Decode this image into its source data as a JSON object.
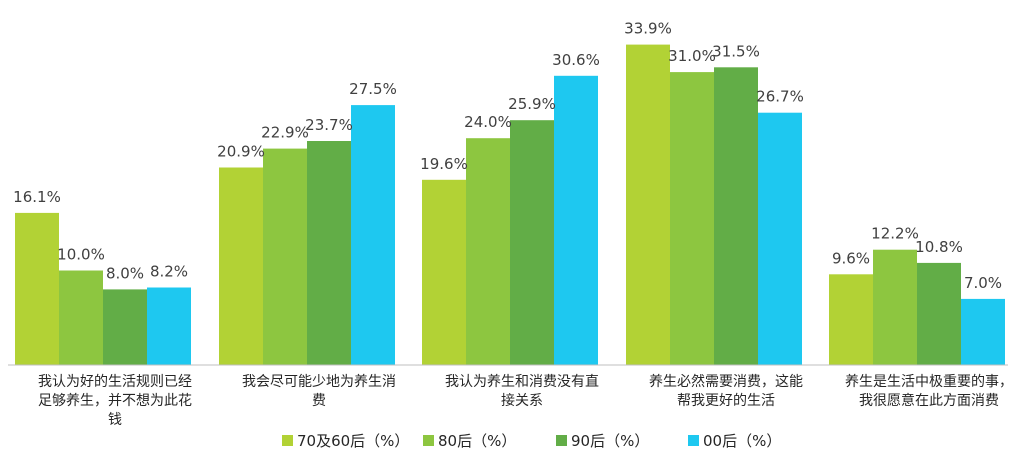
{
  "chart_data": {
    "type": "bar",
    "title": "",
    "xlabel": "",
    "ylabel": "",
    "ylim": [
      0,
      35
    ],
    "grid": false,
    "legend_position": "bottom",
    "categories": [
      [
        "我认为好的生活规则已经",
        "足够养生，并不想为此花",
        "钱"
      ],
      [
        "我会尽可能少地为养生消",
        "费"
      ],
      [
        "我认为养生和消费没有直",
        "接关系"
      ],
      [
        "养生必然需要消费，这能",
        "帮我更好的生活"
      ],
      [
        "养生是生活中极重要的事，",
        "我很愿意在此方面消费"
      ]
    ],
    "series": [
      {
        "name": "70及60后（%）",
        "color": "#b2d235",
        "values": [
          16.1,
          20.9,
          19.6,
          33.9,
          9.6
        ],
        "labels": [
          "16.1%",
          "20.9%",
          "19.6%",
          "33.9%",
          "9.6%"
        ]
      },
      {
        "name": "80后（%）",
        "color": "#8dc640",
        "values": [
          10.0,
          22.9,
          24.0,
          31.0,
          12.2
        ],
        "labels": [
          "10.0%",
          "22.9%",
          "24.0%",
          "31.0%",
          "12.2%"
        ]
      },
      {
        "name": "90后（%）",
        "color": "#62ad47",
        "values": [
          8.0,
          23.7,
          25.9,
          31.5,
          10.8
        ],
        "labels": [
          "8.0%",
          "23.7%",
          "25.9%",
          "31.5%",
          "10.8%"
        ]
      },
      {
        "name": "00后（%）",
        "color": "#1ec8f0",
        "values": [
          8.2,
          27.5,
          30.6,
          26.7,
          7.0
        ],
        "labels": [
          "8.2%",
          "27.5%",
          "30.6%",
          "26.7%",
          "7.0%"
        ]
      }
    ]
  }
}
